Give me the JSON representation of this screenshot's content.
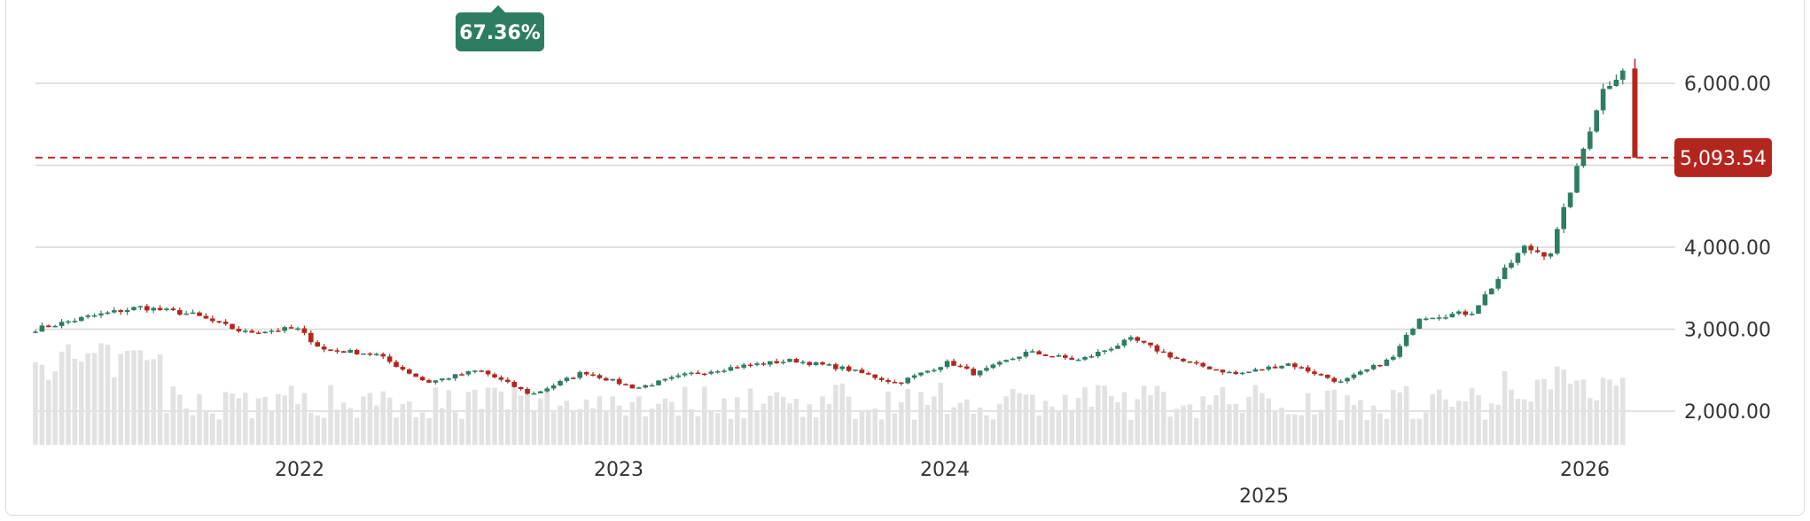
{
  "chart_data": {
    "type": "candlestick",
    "title": "",
    "xlabel": "",
    "ylabel": "",
    "ylim": [
      1600,
      6500
    ],
    "y_ticks": [
      "2,000.00",
      "3,000.00",
      "4,000.00",
      "5,000.00",
      "6,000.00"
    ],
    "x_ticks": [
      "2022",
      "2023",
      "2024",
      "2025",
      "2026"
    ],
    "change_badge": "67.36%",
    "current_price_label": "5,093.54",
    "current_price": 5093.54,
    "grid": true,
    "colors": {
      "up": "#2e7d62",
      "down": "#b3261e",
      "badge": "#2e7d62",
      "price_line": "#c62828",
      "volume": "#e2e2e2",
      "grid": "#d8d8d8"
    },
    "series": [
      {
        "date": "2021-04",
        "close": 3000
      },
      {
        "date": "2021-06",
        "close": 3150
      },
      {
        "date": "2021-08",
        "close": 3270
      },
      {
        "date": "2021-10",
        "close": 3180
      },
      {
        "date": "2021-12",
        "close": 2960
      },
      {
        "date": "2022-02",
        "close": 3010
      },
      {
        "date": "2022-03",
        "close": 2750
      },
      {
        "date": "2022-05",
        "close": 2700
      },
      {
        "date": "2022-07",
        "close": 2350
      },
      {
        "date": "2022-09",
        "close": 2500
      },
      {
        "date": "2022-11",
        "close": 2200
      },
      {
        "date": "2023-01",
        "close": 2480
      },
      {
        "date": "2023-03",
        "close": 2280
      },
      {
        "date": "2023-05",
        "close": 2450
      },
      {
        "date": "2023-07",
        "close": 2550
      },
      {
        "date": "2023-09",
        "close": 2620
      },
      {
        "date": "2023-11",
        "close": 2520
      },
      {
        "date": "2024-01",
        "close": 2340
      },
      {
        "date": "2024-03",
        "close": 2600
      },
      {
        "date": "2024-04",
        "close": 2450
      },
      {
        "date": "2024-06",
        "close": 2720
      },
      {
        "date": "2024-08",
        "close": 2620
      },
      {
        "date": "2024-10",
        "close": 2880
      },
      {
        "date": "2024-12",
        "close": 2600
      },
      {
        "date": "2025-02",
        "close": 2450
      },
      {
        "date": "2025-04",
        "close": 2580
      },
      {
        "date": "2025-06",
        "close": 2350
      },
      {
        "date": "2025-08",
        "close": 2650
      },
      {
        "date": "2025-09",
        "close": 3150
      },
      {
        "date": "2025-11",
        "close": 3200
      },
      {
        "date": "2026-01",
        "close": 4000
      },
      {
        "date": "2026-02",
        "close": 3900
      },
      {
        "date": "2026-03",
        "close": 4900
      },
      {
        "date": "2026-04",
        "close": 5900
      },
      {
        "date": "2026-05",
        "close": 6250
      },
      {
        "date": "2026-05",
        "close": 5093.54
      }
    ]
  }
}
